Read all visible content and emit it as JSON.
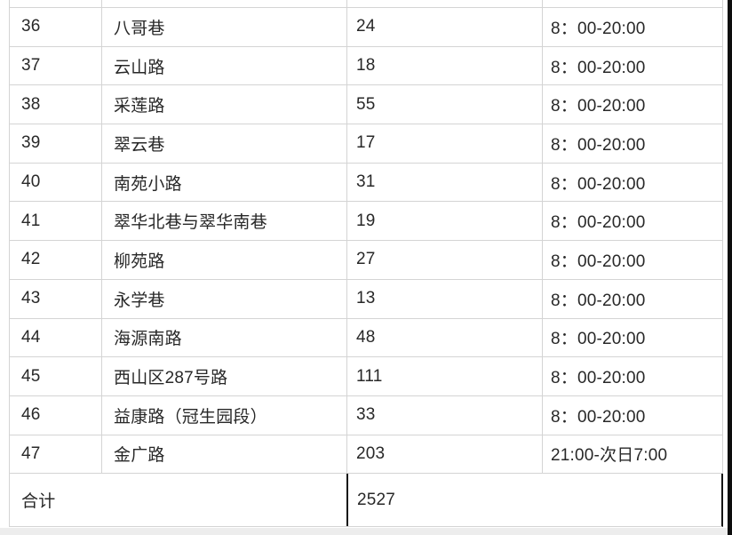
{
  "table": {
    "rows": [
      {
        "no": "36",
        "name": "八哥巷",
        "count": "24",
        "time": "8：00-20:00"
      },
      {
        "no": "37",
        "name": "云山路",
        "count": "18",
        "time": "8：00-20:00"
      },
      {
        "no": "38",
        "name": "采莲路",
        "count": "55",
        "time": "8：00-20:00"
      },
      {
        "no": "39",
        "name": "翠云巷",
        "count": "17",
        "time": "8：00-20:00"
      },
      {
        "no": "40",
        "name": "南苑小路",
        "count": "31",
        "time": "8：00-20:00"
      },
      {
        "no": "41",
        "name": "翠华北巷与翠华南巷",
        "count": "19",
        "time": "8：00-20:00"
      },
      {
        "no": "42",
        "name": "柳苑路",
        "count": "27",
        "time": "8：00-20:00"
      },
      {
        "no": "43",
        "name": "永学巷",
        "count": "13",
        "time": "8：00-20:00"
      },
      {
        "no": "44",
        "name": "海源南路",
        "count": "48",
        "time": "8：00-20:00"
      },
      {
        "no": "45",
        "name": "西山区287号路",
        "count": "111",
        "time": "8：00-20:00"
      },
      {
        "no": "46",
        "name": "益康路（冠生园段）",
        "count": "33",
        "time": "8：00-20:00"
      },
      {
        "no": "47",
        "name": "金广路",
        "count": "203",
        "time": "21:00-次日7:00"
      }
    ],
    "total": {
      "label": "合计",
      "value": "2527"
    }
  },
  "colors": {
    "border": "#d4d4d4",
    "text": "#282828",
    "emphasis_border": "#141414",
    "right_edge_strip": "#0d0d0d",
    "bottom_strip": "#ededed"
  }
}
